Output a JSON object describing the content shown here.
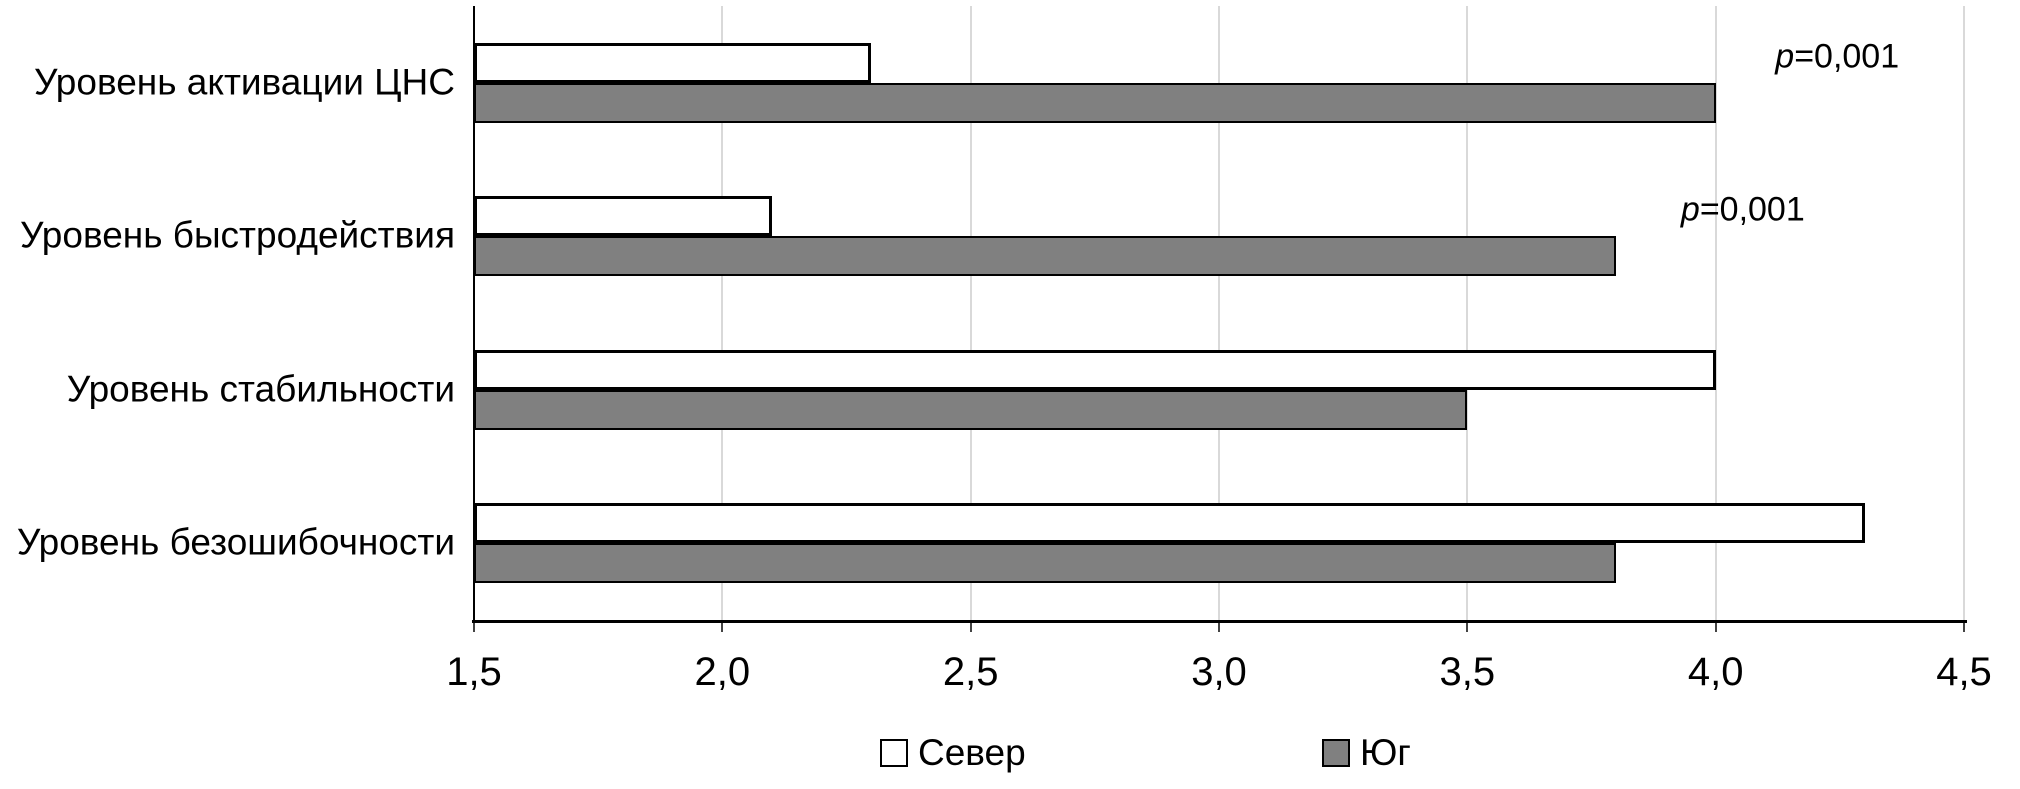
{
  "chart_data": {
    "type": "bar",
    "orientation": "horizontal",
    "title": "",
    "categories": [
      "Уровень активации ЦНС",
      "Уровень быстродействия",
      "Уровень стабильности",
      "Уровень безошибочности"
    ],
    "series": [
      {
        "name": "Север",
        "color": "#ffffff",
        "border_color": "#000000",
        "values": [
          2.3,
          2.1,
          4.0,
          4.3
        ]
      },
      {
        "name": "Юг",
        "color": "#808080",
        "border_color": "#000000",
        "values": [
          4.0,
          3.8,
          3.5,
          3.8
        ]
      }
    ],
    "x_axis": {
      "min": 1.5,
      "max": 4.5,
      "step": 0.5,
      "tick_labels": [
        "1,5",
        "2,0",
        "2,5",
        "3,0",
        "3,5",
        "4,0",
        "4,5"
      ]
    },
    "annotations": [
      {
        "text": "p=0,001",
        "category_index": 0,
        "x": 4.12
      },
      {
        "text": "p=0,001",
        "category_index": 1,
        "x": 3.93
      }
    ],
    "grid": true,
    "gridline_color": "#d9d9d9",
    "legend_position": "bottom"
  }
}
